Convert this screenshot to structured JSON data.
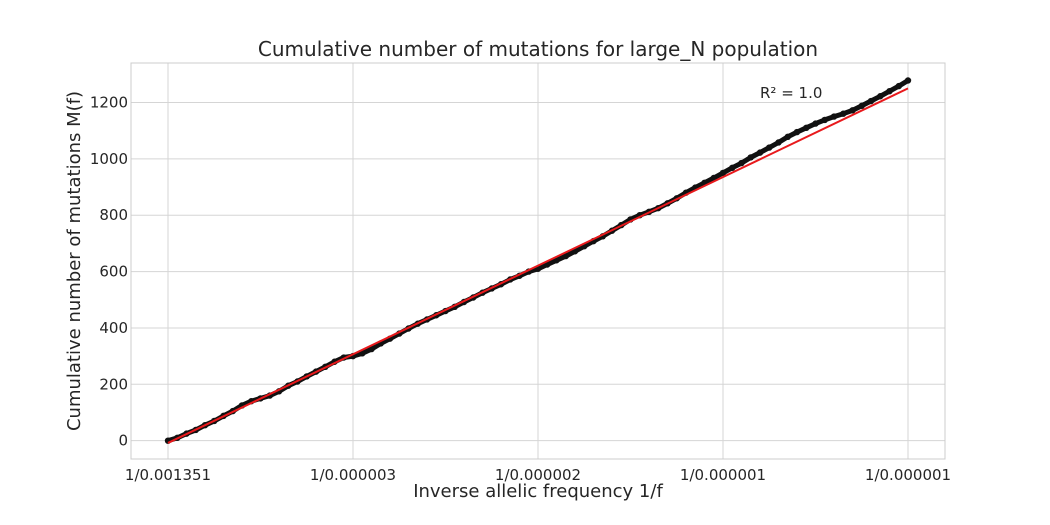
{
  "chart_data": {
    "type": "scatter",
    "title": "Cumulative number of mutations for large_N population",
    "xlabel": "Inverse allelic frequency 1/f",
    "ylabel": "Cumulative number of mutations M(f)",
    "xlim": [
      -0.2,
      4.2
    ],
    "ylim": [
      -65,
      1340
    ],
    "x_ticks": [
      0,
      1,
      2,
      3,
      4
    ],
    "x_tick_labels": [
      "1/0.001351",
      "1/0.000003",
      "1/0.000002",
      "1/0.000001",
      "1/0.000001"
    ],
    "y_ticks": [
      0,
      200,
      400,
      600,
      800,
      1000,
      1200
    ],
    "y_tick_labels": [
      "0",
      "200",
      "400",
      "600",
      "800",
      "1000",
      "1200"
    ],
    "grid": true,
    "annotation": {
      "text": "R² =  1.0",
      "x": 3.2,
      "y": 1215
    },
    "colors": {
      "points": "#111111",
      "fit": "#e8191c",
      "grid": "#d5d5d5",
      "frame": "#cccccc"
    },
    "series": [
      {
        "kind": "points",
        "marker_color": "#111111",
        "x": [
          0.0,
          0.05,
          0.1,
          0.15,
          0.2,
          0.25,
          0.3,
          0.35,
          0.4,
          0.45,
          0.5,
          0.55,
          0.6,
          0.65,
          0.7,
          0.75,
          0.8,
          0.85,
          0.9,
          0.95,
          1.0,
          1.05,
          1.1,
          1.15,
          1.2,
          1.25,
          1.3,
          1.35,
          1.4,
          1.45,
          1.5,
          1.55,
          1.6,
          1.65,
          1.7,
          1.75,
          1.8,
          1.85,
          1.9,
          1.95,
          2.0,
          2.05,
          2.1,
          2.15,
          2.2,
          2.25,
          2.3,
          2.35,
          2.4,
          2.45,
          2.5,
          2.55,
          2.6,
          2.65,
          2.7,
          2.75,
          2.8,
          2.85,
          2.9,
          2.95,
          3.0,
          3.05,
          3.1,
          3.15,
          3.2,
          3.25,
          3.3,
          3.35,
          3.4,
          3.45,
          3.5,
          3.55,
          3.6,
          3.65,
          3.7,
          3.75,
          3.8,
          3.85,
          3.9,
          3.95,
          4.0
        ],
        "y": [
          0,
          10,
          25,
          38,
          55,
          70,
          88,
          105,
          125,
          140,
          150,
          160,
          175,
          195,
          210,
          228,
          245,
          262,
          280,
          295,
          300,
          310,
          325,
          345,
          362,
          380,
          398,
          415,
          430,
          445,
          460,
          475,
          492,
          508,
          525,
          540,
          555,
          572,
          585,
          600,
          610,
          625,
          640,
          655,
          672,
          690,
          708,
          725,
          745,
          765,
          785,
          800,
          812,
          825,
          842,
          860,
          880,
          898,
          915,
          932,
          950,
          968,
          985,
          1005,
          1022,
          1040,
          1058,
          1078,
          1095,
          1110,
          1125,
          1138,
          1150,
          1160,
          1172,
          1188,
          1205,
          1222,
          1240,
          1258,
          1278
        ]
      },
      {
        "kind": "fit_line",
        "line_color": "#e8191c",
        "x": [
          0.0,
          4.0
        ],
        "y": [
          -8,
          1250
        ]
      }
    ]
  }
}
